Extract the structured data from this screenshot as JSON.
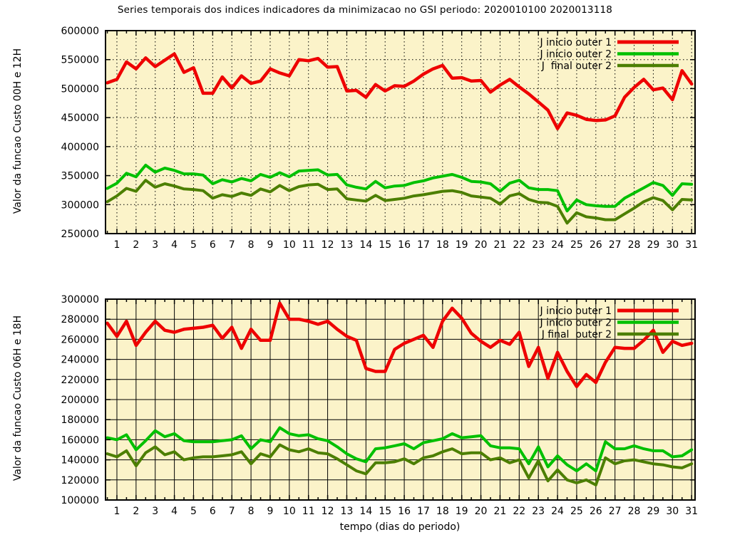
{
  "title": "Series temporais dos indices indicadores da minimizacao no GSI periodo: 2020010100 2020013118",
  "xlabel": "tempo (dias do periodo)",
  "colors": {
    "background_plot": "#fbf3c9",
    "page": "#ffffff",
    "red": "#ee0000",
    "green": "#00c000",
    "olive": "#4c7f00",
    "axis": "#000000"
  },
  "chart_data": [
    {
      "type": "line",
      "panel": "top",
      "ylabel": "Valor da funcao Custo 00H e 12H",
      "ylim": [
        250000,
        600000
      ],
      "ytick_step": 50000,
      "yticks": [
        250000,
        300000,
        350000,
        400000,
        450000,
        500000,
        550000,
        600000
      ],
      "xlim": [
        0.405,
        31.18
      ],
      "xticks": [
        1,
        2,
        3,
        4,
        5,
        6,
        7,
        8,
        9,
        10,
        11,
        12,
        13,
        14,
        15,
        16,
        17,
        18,
        19,
        20,
        21,
        22,
        23,
        24,
        25,
        26,
        27,
        28,
        29,
        30,
        31
      ],
      "grid_style": "dotted",
      "legend_position": "top-right",
      "x_start": 0.5,
      "x_step": 0.5,
      "y_values_scale": 1000,
      "series": [
        {
          "name": "J inicio outer 1",
          "color_key": "red",
          "width": 4.5,
          "values": [
            510,
            516,
            546,
            534,
            553,
            538,
            549,
            560,
            528,
            536,
            492,
            492,
            520,
            501,
            522,
            509,
            513,
            534,
            527,
            522,
            550,
            548,
            552,
            537,
            538,
            496,
            497,
            485,
            507,
            496,
            505,
            504,
            513,
            525,
            534,
            540,
            518,
            519,
            513,
            514,
            494,
            506,
            516,
            503,
            491,
            477,
            463,
            431,
            458,
            454,
            447,
            445,
            446,
            453,
            485,
            502,
            516,
            498,
            501,
            481,
            531,
            508
          ]
        },
        {
          "name": "J inicio outer 2",
          "color_key": "green",
          "width": 4,
          "values": [
            328,
            337,
            354,
            348,
            368,
            356,
            363,
            359,
            353,
            353,
            351,
            336,
            343,
            339,
            345,
            341,
            352,
            347,
            355,
            348,
            358,
            359,
            360,
            351,
            352,
            334,
            330,
            327,
            340,
            329,
            332,
            333,
            338,
            341,
            346,
            349,
            352,
            347,
            340,
            339,
            336,
            323,
            337,
            342,
            329,
            326,
            326,
            324,
            289,
            308,
            300,
            298,
            297,
            297,
            311,
            320,
            329,
            338,
            333,
            316,
            336,
            335
          ]
        },
        {
          "name": "J  final outer 2",
          "color_key": "olive",
          "width": 4,
          "values": [
            305,
            315,
            328,
            323,
            342,
            330,
            336,
            332,
            327,
            326,
            324,
            311,
            317,
            314,
            320,
            316,
            327,
            322,
            333,
            324,
            331,
            334,
            335,
            326,
            327,
            310,
            308,
            306,
            316,
            307,
            309,
            311,
            315,
            317,
            320,
            323,
            324,
            321,
            315,
            313,
            311,
            301,
            315,
            319,
            309,
            304,
            303,
            297,
            268,
            286,
            279,
            277,
            274,
            274,
            284,
            294,
            305,
            312,
            307,
            291,
            309,
            308
          ]
        }
      ]
    },
    {
      "type": "line",
      "panel": "bottom",
      "ylabel": "Valor da funcao Custo 06H e 18H",
      "ylim": [
        100000,
        300000
      ],
      "ytick_step": 20000,
      "yticks": [
        100000,
        120000,
        140000,
        160000,
        180000,
        200000,
        220000,
        240000,
        260000,
        280000,
        300000
      ],
      "xlim": [
        0.405,
        31.18
      ],
      "xticks": [
        1,
        2,
        3,
        4,
        5,
        6,
        7,
        8,
        9,
        10,
        11,
        12,
        13,
        14,
        15,
        16,
        17,
        18,
        19,
        20,
        21,
        22,
        23,
        24,
        25,
        26,
        27,
        28,
        29,
        30,
        31
      ],
      "grid_style": "solid",
      "legend_position": "top-right",
      "x_start": 0.5,
      "x_step": 0.5,
      "y_values_scale": 1000,
      "series": [
        {
          "name": "J inicio outer 1",
          "color_key": "red",
          "width": 4.5,
          "values": [
            276,
            263,
            278,
            254,
            267,
            278,
            269,
            267,
            270,
            271,
            272,
            274,
            261,
            272,
            251,
            270,
            259,
            259,
            296,
            280,
            280,
            278,
            275,
            278,
            270,
            263,
            259,
            231,
            228,
            228,
            250,
            256,
            260,
            264,
            252,
            278,
            291,
            281,
            266,
            258,
            252,
            259,
            255,
            267,
            233,
            252,
            221,
            247,
            228,
            213,
            225,
            217,
            237,
            252,
            251,
            251,
            259,
            269,
            247,
            258,
            254,
            256
          ]
        },
        {
          "name": "J inicio outer 2",
          "color_key": "green",
          "width": 4,
          "values": [
            162,
            160,
            165,
            150,
            159,
            169,
            163,
            166,
            159,
            158,
            158,
            158,
            159,
            160,
            164,
            151,
            160,
            158,
            172,
            166,
            164,
            165,
            161,
            159,
            153,
            146,
            141,
            138,
            151,
            152,
            154,
            156,
            151,
            157,
            159,
            161,
            166,
            162,
            163,
            164,
            154,
            152,
            152,
            151,
            136,
            153,
            133,
            144,
            135,
            129,
            136,
            129,
            158,
            151,
            151,
            154,
            151,
            149,
            149,
            143,
            144,
            150
          ]
        },
        {
          "name": "J final  outer 2",
          "color_key": "olive",
          "width": 4,
          "values": [
            146,
            143,
            149,
            134,
            147,
            153,
            145,
            148,
            140,
            142,
            143,
            143,
            144,
            145,
            148,
            136,
            146,
            143,
            155,
            150,
            148,
            151,
            147,
            146,
            141,
            135,
            129,
            126,
            137,
            137,
            138,
            141,
            136,
            142,
            144,
            148,
            151,
            146,
            147,
            147,
            140,
            142,
            137,
            140,
            122,
            139,
            119,
            130,
            120,
            117,
            120,
            115,
            142,
            136,
            139,
            140,
            138,
            136,
            135,
            133,
            132,
            136
          ]
        }
      ]
    }
  ]
}
